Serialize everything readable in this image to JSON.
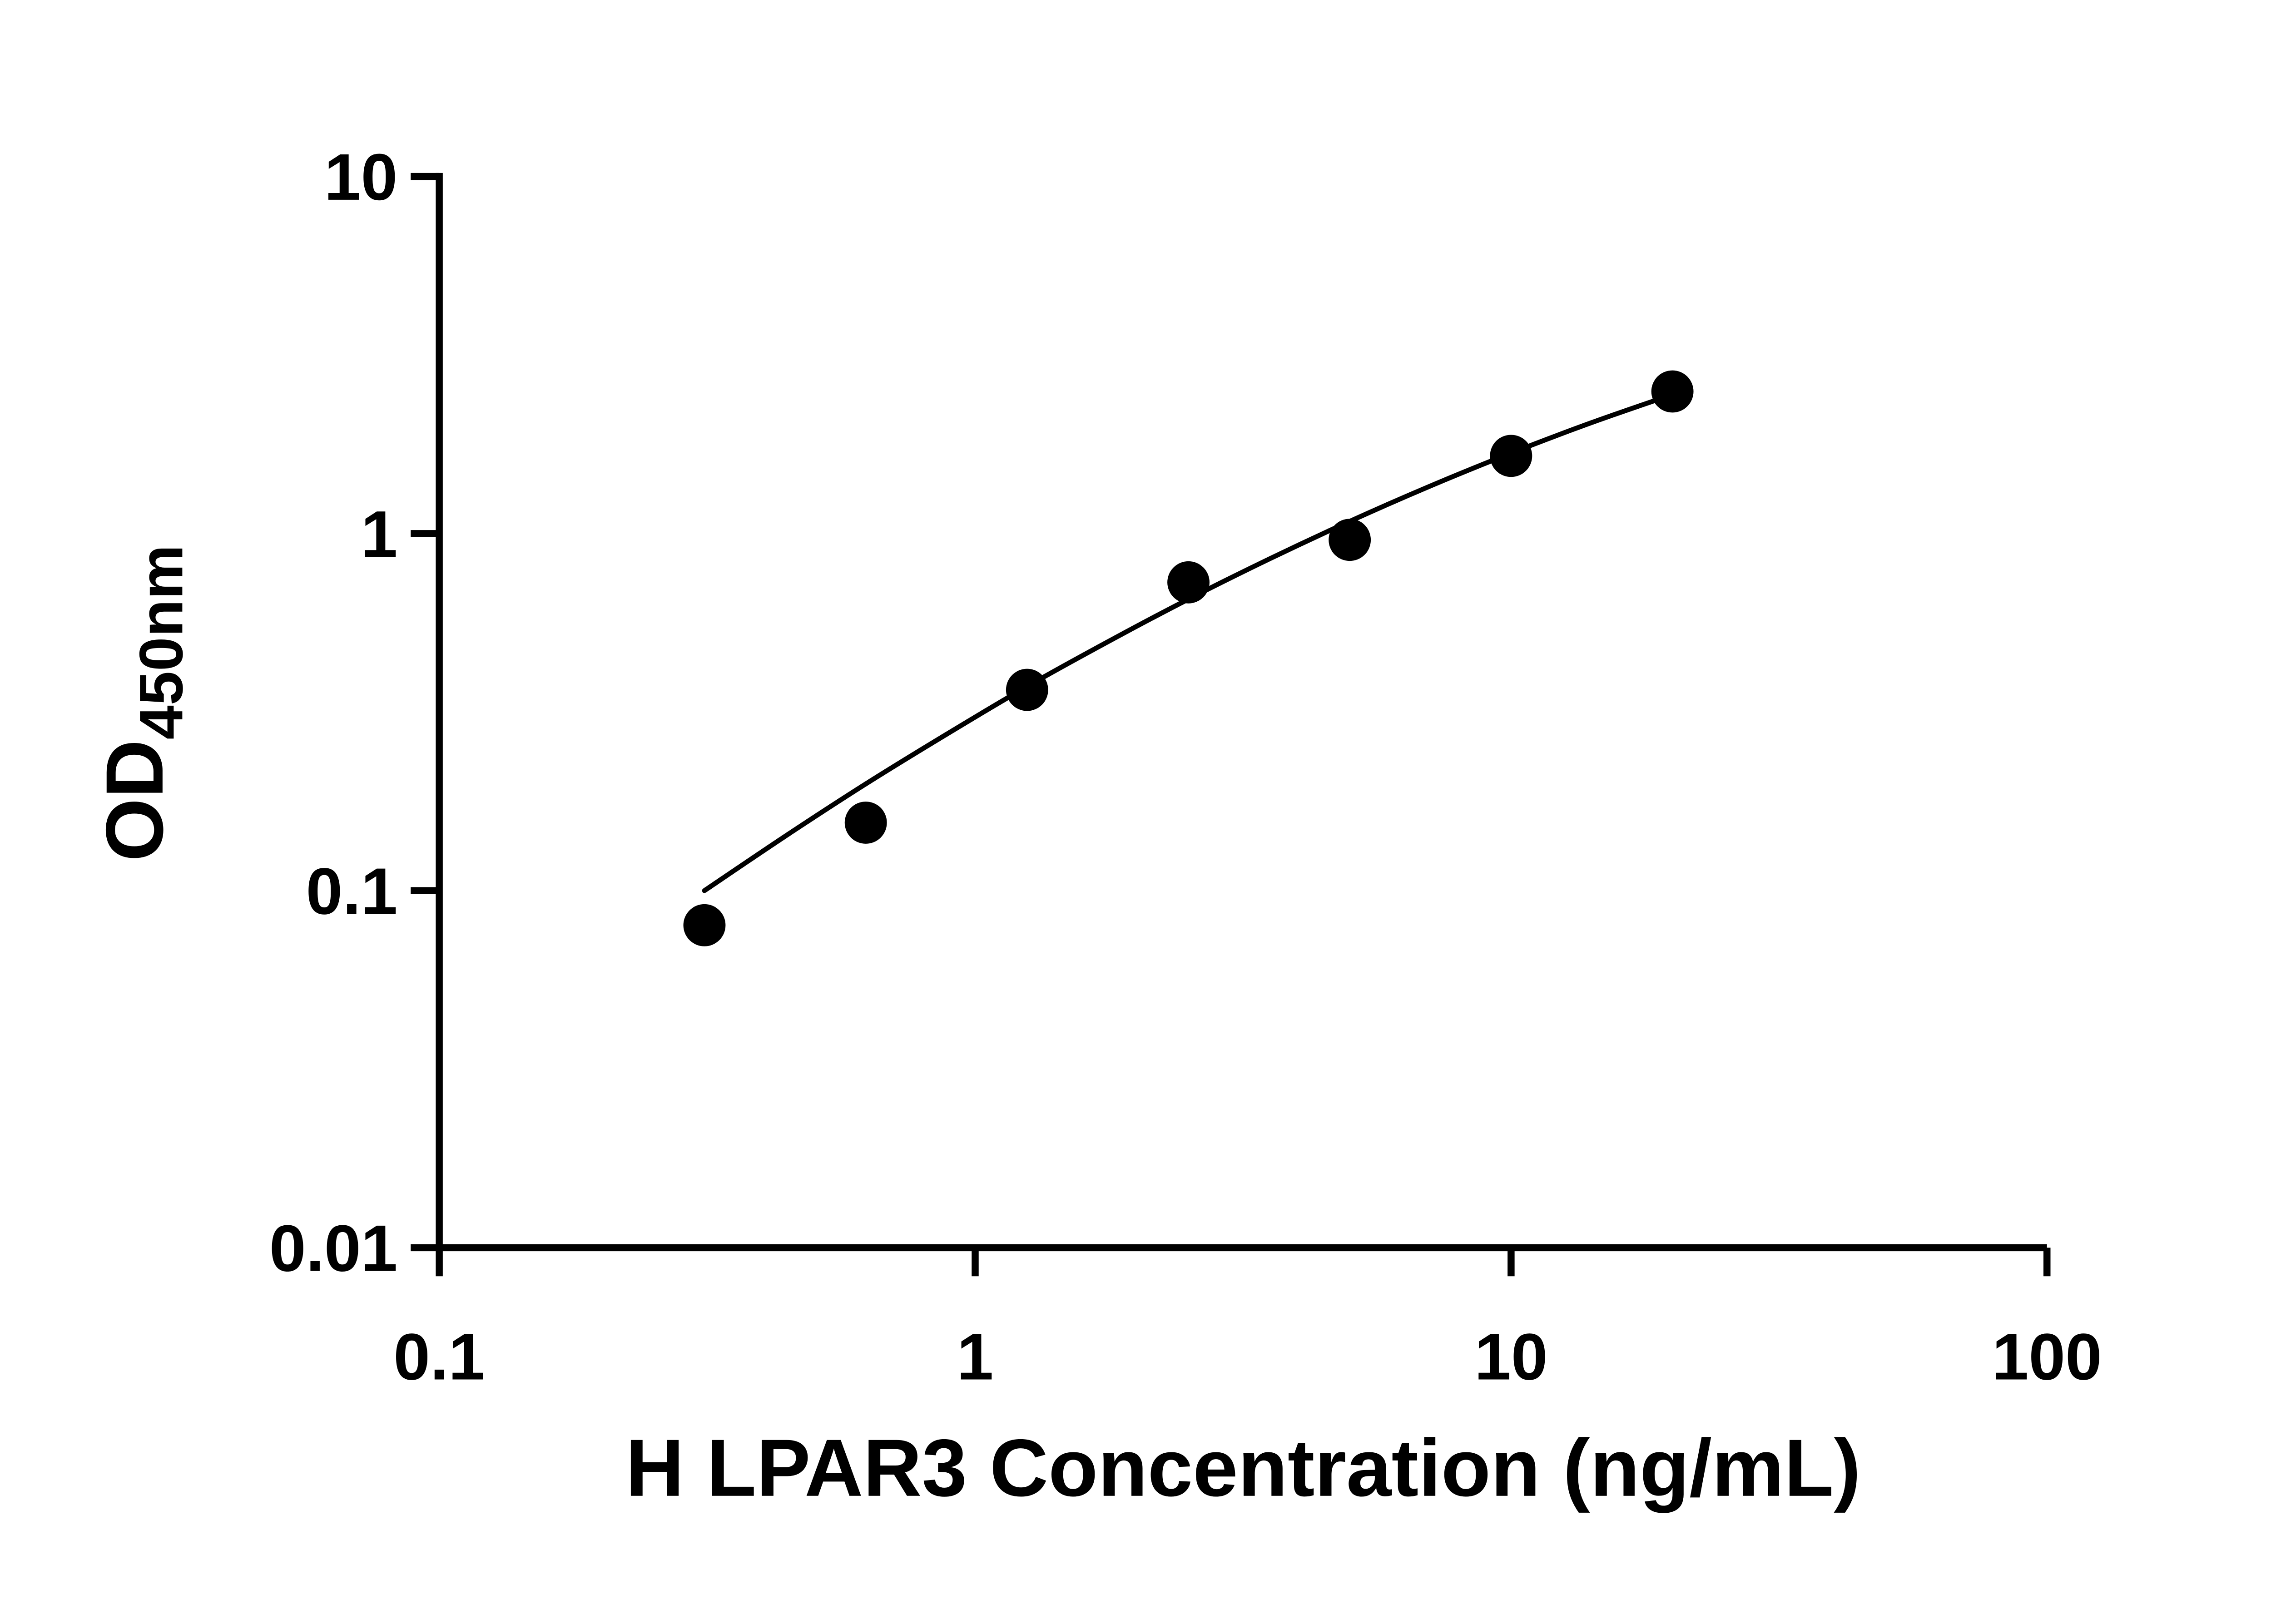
{
  "page": {
    "background": "#ffffff",
    "foreground": "#000000"
  },
  "chart_data": {
    "type": "scatter",
    "title": "",
    "xlabel": "H LPAR3 Concentration (ng/mL)",
    "ylabel": {
      "main": "OD",
      "subscript": "450nm"
    },
    "x_scale": "log",
    "y_scale": "log",
    "xlim": [
      0.1,
      100
    ],
    "ylim": [
      0.01,
      10
    ],
    "grid": false,
    "legend": false,
    "x_ticks": [
      {
        "value": 0.1,
        "label": "0.1"
      },
      {
        "value": 1,
        "label": "1"
      },
      {
        "value": 10,
        "label": "10"
      },
      {
        "value": 100,
        "label": "100"
      }
    ],
    "y_ticks": [
      {
        "value": 10,
        "label": "10"
      },
      {
        "value": 1,
        "label": "1"
      },
      {
        "value": 0.1,
        "label": "0.1"
      },
      {
        "value": 0.01,
        "label": "0.01"
      }
    ],
    "series": [
      {
        "name": "standard-curve-points",
        "marker": "circle",
        "color": "#000000",
        "points": [
          {
            "x": 0.3125,
            "y": 0.08
          },
          {
            "x": 0.625,
            "y": 0.155
          },
          {
            "x": 1.25,
            "y": 0.365
          },
          {
            "x": 2.5,
            "y": 0.73
          },
          {
            "x": 5,
            "y": 0.96
          },
          {
            "x": 10,
            "y": 1.65
          },
          {
            "x": 20,
            "y": 2.5
          }
        ]
      }
    ],
    "fit_curve": {
      "name": "fitted-standard-curve",
      "color": "#000000",
      "samples": [
        [
          0.3125,
          0.1
        ],
        [
          0.442,
          0.142
        ],
        [
          0.625,
          0.199
        ],
        [
          0.884,
          0.274
        ],
        [
          1.25,
          0.373
        ],
        [
          1.77,
          0.498
        ],
        [
          2.5,
          0.655
        ],
        [
          3.54,
          0.849
        ],
        [
          5,
          1.082
        ],
        [
          7.07,
          1.359
        ],
        [
          10,
          1.68
        ],
        [
          14.14,
          2.045
        ],
        [
          20,
          2.451
        ]
      ]
    }
  }
}
